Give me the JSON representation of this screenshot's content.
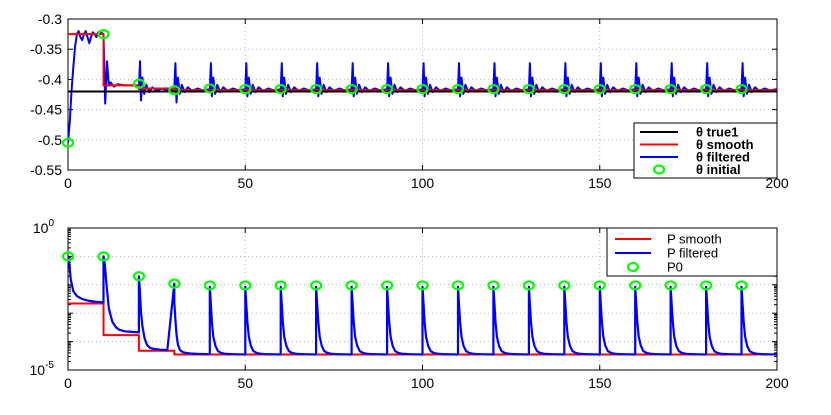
{
  "colors": {
    "true": "#000000",
    "smooth": "#ff0000",
    "filtered": "#0000ff",
    "initial": "#00ff00"
  },
  "chart_data": [
    {
      "type": "line",
      "title": "",
      "xlabel": "",
      "ylabel": "",
      "xlim": [
        0,
        200
      ],
      "ylim": [
        -0.55,
        -0.3
      ],
      "grid": true,
      "legend_position": "bottom-right",
      "xticks": [
        0,
        50,
        100,
        150,
        200
      ],
      "yticks": [
        -0.55,
        -0.5,
        -0.45,
        -0.4,
        -0.35,
        -0.3
      ],
      "xtick_labels": [
        "0",
        "50",
        "100",
        "150",
        "200"
      ],
      "ytick_labels": [
        "-0.55",
        "-0.5",
        "-0.45",
        "-0.4",
        "-0.35",
        "-0.3"
      ],
      "series": [
        {
          "name": "θ true1",
          "color": "#000000",
          "kind": "line",
          "x": [
            0,
            200
          ],
          "y": [
            -0.42,
            -0.42
          ]
        },
        {
          "name": "θ smooth",
          "color": "#ff0000",
          "kind": "line",
          "x": [
            0,
            10,
            10,
            20,
            20,
            30,
            30,
            200
          ],
          "y": [
            -0.325,
            -0.325,
            -0.41,
            -0.41,
            -0.415,
            -0.415,
            -0.418,
            -0.418
          ]
        },
        {
          "name": "θ filtered",
          "color": "#0000ff",
          "kind": "line",
          "x": [
            0,
            0.5,
            1,
            1.5,
            2,
            2.5,
            3,
            3.5,
            4,
            4.5,
            5,
            5.5,
            6,
            6.5,
            7,
            7.5,
            8,
            8.5,
            9,
            9.5,
            10,
            10.5,
            11,
            11.5,
            12,
            13,
            14,
            16,
            18,
            20
          ],
          "y": [
            -0.505,
            -0.47,
            -0.42,
            -0.38,
            -0.345,
            -0.325,
            -0.32,
            -0.33,
            -0.335,
            -0.325,
            -0.32,
            -0.33,
            -0.34,
            -0.33,
            -0.322,
            -0.325,
            -0.33,
            -0.322,
            -0.325,
            -0.323,
            -0.325,
            -0.44,
            -0.37,
            -0.41,
            -0.405,
            -0.412,
            -0.408,
            -0.41,
            -0.41,
            -0.41
          ]
        },
        {
          "name": "θ initial",
          "color": "#00ff00",
          "kind": "marker",
          "x": [
            0,
            10,
            20,
            30,
            40,
            50,
            60,
            70,
            80,
            90,
            100,
            110,
            120,
            130,
            140,
            150,
            160,
            170,
            180,
            190
          ],
          "y": [
            -0.505,
            -0.325,
            -0.407,
            -0.418,
            -0.415,
            -0.416,
            -0.416,
            -0.416,
            -0.416,
            -0.416,
            -0.416,
            -0.416,
            -0.416,
            -0.416,
            -0.416,
            -0.416,
            -0.416,
            -0.416,
            -0.416,
            -0.416
          ]
        }
      ],
      "legend": [
        {
          "label": "θ true1",
          "key": "true",
          "kind": "line"
        },
        {
          "label": "θ smooth",
          "key": "smooth",
          "kind": "line"
        },
        {
          "label": "θ filtered",
          "key": "filtered",
          "kind": "line"
        },
        {
          "label": "θ initial",
          "key": "initial",
          "kind": "marker"
        }
      ]
    },
    {
      "type": "line",
      "title": "",
      "xlabel": "",
      "ylabel": "",
      "yscale": "log",
      "xlim": [
        0,
        200
      ],
      "ylim": [
        1e-05,
        1
      ],
      "grid": true,
      "legend_position": "top-right",
      "xticks": [
        0,
        50,
        100,
        150,
        200
      ],
      "xtick_labels": [
        "0",
        "50",
        "100",
        "150",
        "200"
      ],
      "yticks": [
        1e-05,
        1
      ],
      "ytick_labels": [
        {
          "base": "10",
          "exp": "-5"
        },
        {
          "base": "10",
          "exp": "0"
        }
      ],
      "series": [
        {
          "name": "P smooth",
          "color": "#ff0000",
          "kind": "line",
          "x": [
            0,
            10,
            10,
            20,
            20,
            30,
            30,
            200
          ],
          "y": [
            0.0022,
            0.0022,
            0.00017,
            0.00017,
            4.8e-05,
            4.8e-05,
            3.5e-05,
            3.5e-05
          ]
        },
        {
          "name": "P filtered",
          "color": "#0000ff",
          "kind": "line",
          "x": [
            0,
            0.4,
            0.8,
            1.5,
            2.5,
            3.5,
            4.5,
            6,
            8,
            10,
            10,
            10.4,
            10.8,
            11.5,
            12.5,
            13.5,
            14.5,
            16,
            18,
            20,
            20,
            20.3,
            20.6,
            21,
            21.6,
            22.3,
            23.2,
            24.3,
            26,
            28,
            30,
            30,
            30.3,
            30.6,
            31,
            31.6,
            32.3,
            33.2,
            34.5,
            36.5,
            40
          ],
          "y": [
            0.1,
            0.05,
            0.015,
            0.006,
            0.004,
            0.0034,
            0.003,
            0.0027,
            0.0025,
            0.0024,
            0.1,
            0.05,
            0.012,
            0.0015,
            0.0005,
            0.00032,
            0.00026,
            0.00023,
            0.00022,
            0.00021,
            0.02,
            0.005,
            0.0011,
            0.00035,
            0.00013,
            7.5e-05,
            6e-05,
            5.5e-05,
            5.2e-05,
            5e-05,
            0.011,
            0.0025,
            0.0006,
            0.00018,
            8e-05,
            5e-05,
            4.3e-05,
            4e-05,
            3.8e-05,
            3.7e-05,
            3.6e-05
          ],
          "spikes_every": 10,
          "spike_start": 40,
          "spike_end": 200,
          "spike_peak": 0.0085,
          "spike_floor": 3.5e-05
        },
        {
          "name": "P0",
          "color": "#00ff00",
          "kind": "marker",
          "x": [
            0,
            10,
            20,
            30,
            40,
            50,
            60,
            70,
            80,
            90,
            100,
            110,
            120,
            130,
            140,
            150,
            160,
            170,
            180,
            190
          ],
          "y": [
            0.1,
            0.1,
            0.02,
            0.011,
            0.0095,
            0.0095,
            0.0095,
            0.0095,
            0.0095,
            0.0095,
            0.0095,
            0.0095,
            0.0095,
            0.0095,
            0.0095,
            0.0095,
            0.0095,
            0.0095,
            0.0095,
            0.0095
          ]
        }
      ],
      "legend": [
        {
          "label": "P smooth",
          "key": "smooth",
          "kind": "line"
        },
        {
          "label": "P filtered",
          "key": "filtered",
          "kind": "line"
        },
        {
          "label": "P0",
          "key": "initial",
          "kind": "marker"
        }
      ]
    }
  ]
}
